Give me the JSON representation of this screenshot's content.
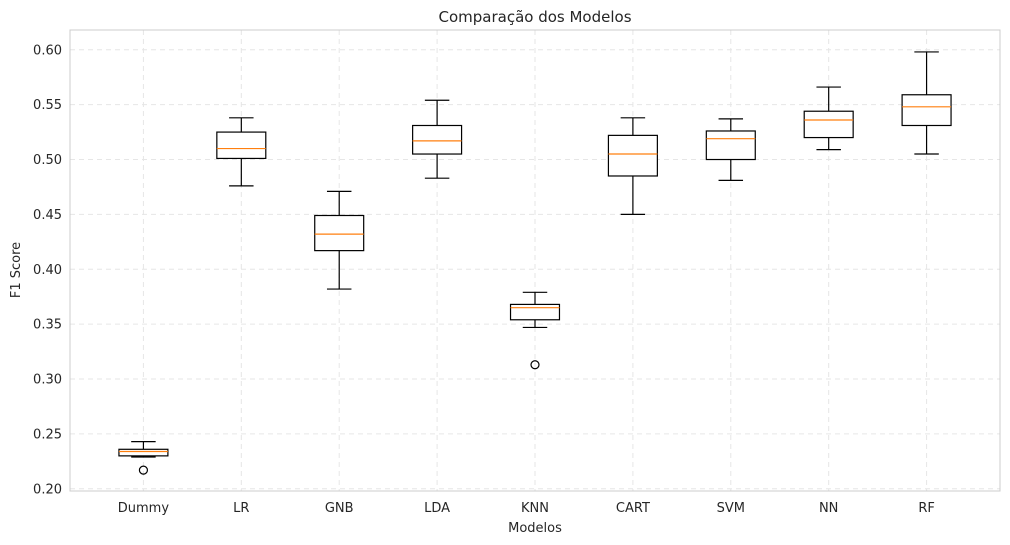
{
  "chart_data": {
    "type": "box",
    "title": "Comparação dos Modelos",
    "xlabel": "Modelos",
    "ylabel": "F1 Score",
    "ylim": [
      0.198,
      0.618
    ],
    "yticks": [
      0.2,
      0.25,
      0.3,
      0.35,
      0.4,
      0.45,
      0.5,
      0.55,
      0.6
    ],
    "ytick_labels": [
      "0.20",
      "0.25",
      "0.30",
      "0.35",
      "0.40",
      "0.45",
      "0.50",
      "0.55",
      "0.60"
    ],
    "grid": true,
    "colors": {
      "box": "#000000",
      "median": "#ff7f0e",
      "grid": "#e6e6e6",
      "frame": "#cccccc"
    },
    "categories": [
      "Dummy",
      "LR",
      "GNB",
      "LDA",
      "KNN",
      "CART",
      "SVM",
      "NN",
      "RF"
    ],
    "boxes": [
      {
        "whisker_low": 0.229,
        "q1": 0.23,
        "median": 0.234,
        "q3": 0.236,
        "whisker_high": 0.243,
        "fliers": [
          0.217
        ]
      },
      {
        "whisker_low": 0.476,
        "q1": 0.501,
        "median": 0.51,
        "q3": 0.525,
        "whisker_high": 0.538,
        "fliers": []
      },
      {
        "whisker_low": 0.382,
        "q1": 0.417,
        "median": 0.432,
        "q3": 0.449,
        "whisker_high": 0.471,
        "fliers": []
      },
      {
        "whisker_low": 0.483,
        "q1": 0.505,
        "median": 0.517,
        "q3": 0.531,
        "whisker_high": 0.554,
        "fliers": []
      },
      {
        "whisker_low": 0.347,
        "q1": 0.354,
        "median": 0.365,
        "q3": 0.368,
        "whisker_high": 0.379,
        "fliers": [
          0.313
        ]
      },
      {
        "whisker_low": 0.45,
        "q1": 0.485,
        "median": 0.505,
        "q3": 0.522,
        "whisker_high": 0.538,
        "fliers": []
      },
      {
        "whisker_low": 0.481,
        "q1": 0.5,
        "median": 0.519,
        "q3": 0.526,
        "whisker_high": 0.537,
        "fliers": []
      },
      {
        "whisker_low": 0.509,
        "q1": 0.52,
        "median": 0.536,
        "q3": 0.544,
        "whisker_high": 0.566,
        "fliers": []
      },
      {
        "whisker_low": 0.505,
        "q1": 0.531,
        "median": 0.548,
        "q3": 0.559,
        "whisker_high": 0.598,
        "fliers": []
      }
    ]
  }
}
